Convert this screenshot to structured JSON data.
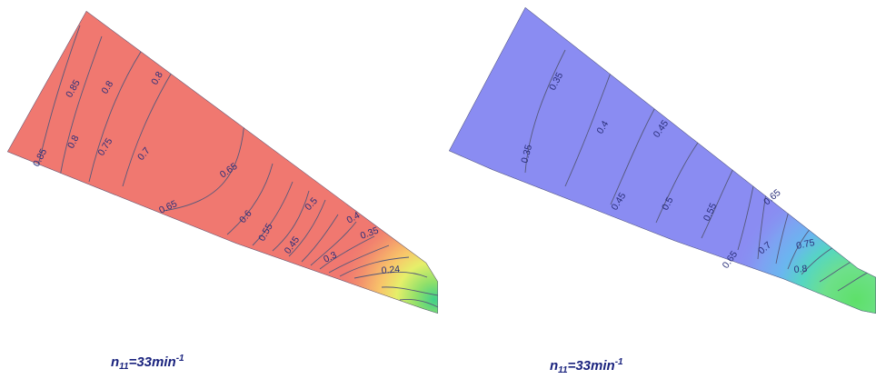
{
  "left_panel": {
    "contour_labels": [
      "0.85",
      "0.8",
      "0.8",
      "0.85",
      "0.8",
      "0.75",
      "0.7",
      "0.65",
      "0.65",
      "0.6",
      "0.55",
      "0.5",
      "0.45",
      "0.4",
      "0.35",
      "0.3",
      "0.24"
    ],
    "caption": {
      "var": "n",
      "sub": "11",
      "eq": "=33min",
      "sup": "-1"
    }
  },
  "right_panel": {
    "contour_labels": [
      "0.35",
      "0.35",
      "0.4",
      "0.45",
      "0.45",
      "0.5",
      "0.55",
      "0.65",
      "0.65",
      "0.7",
      "0.75",
      "0.8"
    ],
    "caption": {
      "var": "n",
      "sub": "11",
      "eq": "=33min",
      "sup": "-1"
    }
  },
  "colors": {
    "left_fill": "#f07870",
    "right_fill": "#8a8cf2",
    "contour_line": "#55587a",
    "label": "#2a2f7a",
    "caption": "#1a237e"
  }
}
